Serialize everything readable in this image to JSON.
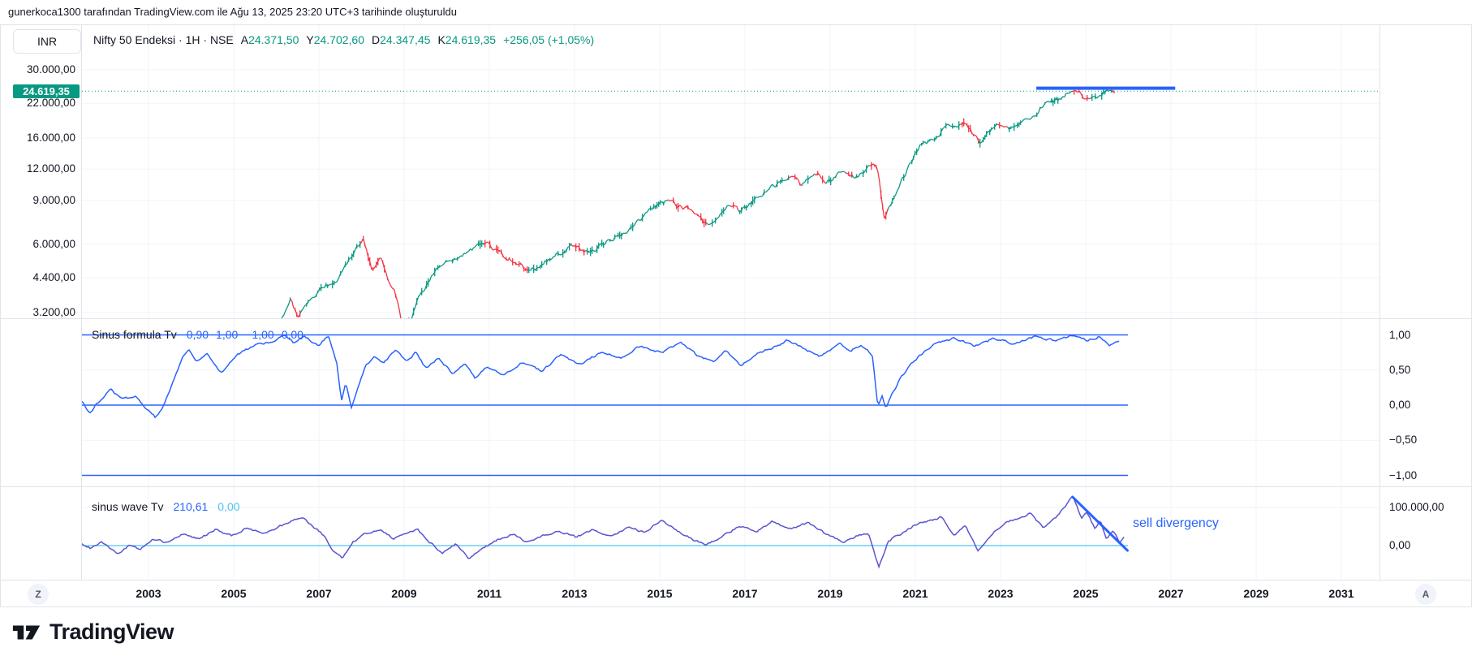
{
  "attribution": "gunerkoca1300 tarafından TradingView.com ile Ağu 13, 2025 23:20 UTC+3 tarihinde oluşturuldu",
  "header": {
    "currency_button": "INR",
    "symbol_title": "Nifty 50 Endeksi · 1H · NSE",
    "ohlc": [
      {
        "prefix": "A",
        "value": "24.371,50"
      },
      {
        "prefix": "Y",
        "value": "24.702,60"
      },
      {
        "prefix": "D",
        "value": "24.347,45"
      },
      {
        "prefix": "K",
        "value": "24.619,35"
      }
    ],
    "change": "+256,05 (+1,05%)"
  },
  "price_label": {
    "label": "24.619,35",
    "value": 24619.35
  },
  "price_scale": {
    "ticks": [
      {
        "label": "30.000,00",
        "value": 30000
      },
      {
        "label": "22.000,00",
        "value": 22000
      },
      {
        "label": "16.000,00",
        "value": 16000
      },
      {
        "label": "12.000,00",
        "value": 12000
      },
      {
        "label": "9.000,00",
        "value": 9000
      },
      {
        "label": "6.000,00",
        "value": 6000
      },
      {
        "label": "4.400,00",
        "value": 4400
      },
      {
        "label": "3.200,00",
        "value": 3200
      }
    ]
  },
  "indicator1": {
    "title": "Sinus formula Tv",
    "values": [
      "0,90",
      "1,00",
      "−1,00",
      "0,00"
    ],
    "axis_ticks": [
      {
        "label": "1,00",
        "value": 1
      },
      {
        "label": "0,50",
        "value": 0.5
      },
      {
        "label": "0,00",
        "value": 0
      },
      {
        "label": "−0,50",
        "value": -0.5
      },
      {
        "label": "−1,00",
        "value": -1
      }
    ]
  },
  "indicator2": {
    "title": "sinus wave Tv",
    "value1": "210,61",
    "value2": "0,00",
    "axis_ticks": [
      {
        "label": "100.000,00",
        "value": 100000
      },
      {
        "label": "0,00",
        "value": 0
      }
    ]
  },
  "annotations": {
    "sell_divergency": "sell divergency"
  },
  "time_axis": {
    "years": [
      "2003",
      "2005",
      "2007",
      "2009",
      "2011",
      "2013",
      "2015",
      "2017",
      "2019",
      "2021",
      "2023",
      "2025",
      "2027",
      "2029",
      "2031"
    ],
    "z_button": "Z",
    "a_button": "A"
  },
  "footer": {
    "logo_text": "TradingView"
  },
  "colors": {
    "up": "#089981",
    "down": "#f23645",
    "accent_blue": "#2962ff",
    "indicator2_line": "#5a54d1",
    "zero_line_cyan": "#4fc3f7",
    "badge_bg": "#089981",
    "grid": "#f0f3fa",
    "border": "#e0e3eb"
  },
  "chart_data": {
    "type": "candlestick",
    "title": "Nifty 50 Endeksi",
    "timeframe": "1H",
    "exchange": "NSE",
    "currency": "INR",
    "ohlc_values": {
      "open": 24371.5,
      "high": 24702.6,
      "low": 24347.45,
      "close": 24619.35,
      "change": 256.05,
      "change_pct": 1.05
    },
    "last_price": 24619.35,
    "price_axis": {
      "scale": "log",
      "side": "left",
      "ticks": [
        30000,
        22000,
        16000,
        12000,
        9000,
        6000,
        4400,
        3200
      ]
    },
    "x_axis": {
      "unit": "year",
      "ticks": [
        2003,
        2005,
        2007,
        2009,
        2011,
        2013,
        2015,
        2017,
        2019,
        2021,
        2023,
        2025,
        2027,
        2029,
        2031
      ]
    },
    "price_series": [
      [
        2006.1,
        2900
      ],
      [
        2006.35,
        3650
      ],
      [
        2006.5,
        3050
      ],
      [
        2007.0,
        3900
      ],
      [
        2007.4,
        4300
      ],
      [
        2007.75,
        5300
      ],
      [
        2008.05,
        6300
      ],
      [
        2008.25,
        4750
      ],
      [
        2008.45,
        5250
      ],
      [
        2008.6,
        4450
      ],
      [
        2008.8,
        3800
      ],
      [
        2008.95,
        2850
      ],
      [
        2009.15,
        2950
      ],
      [
        2009.35,
        3700
      ],
      [
        2009.6,
        4300
      ],
      [
        2009.85,
        5000
      ],
      [
        2010.3,
        5250
      ],
      [
        2010.85,
        6150
      ],
      [
        2011.3,
        5500
      ],
      [
        2011.6,
        5050
      ],
      [
        2011.95,
        4650
      ],
      [
        2012.4,
        5250
      ],
      [
        2012.95,
        5900
      ],
      [
        2013.35,
        5550
      ],
      [
        2013.8,
        6200
      ],
      [
        2014.3,
        6850
      ],
      [
        2014.85,
        8400
      ],
      [
        2015.2,
        8950
      ],
      [
        2015.7,
        8200
      ],
      [
        2016.15,
        7100
      ],
      [
        2016.6,
        8650
      ],
      [
        2016.9,
        8100
      ],
      [
        2017.5,
        9900
      ],
      [
        2018.05,
        11150
      ],
      [
        2018.35,
        10400
      ],
      [
        2018.7,
        11600
      ],
      [
        2018.9,
        10450
      ],
      [
        2019.3,
        11750
      ],
      [
        2019.6,
        11150
      ],
      [
        2019.95,
        12300
      ],
      [
        2020.1,
        12400
      ],
      [
        2020.28,
        7600
      ],
      [
        2020.5,
        9350
      ],
      [
        2020.75,
        11400
      ],
      [
        2021.1,
        14800
      ],
      [
        2021.45,
        15500
      ],
      [
        2021.75,
        17900
      ],
      [
        2022.0,
        17400
      ],
      [
        2022.15,
        18400
      ],
      [
        2022.5,
        15450
      ],
      [
        2022.8,
        17400
      ],
      [
        2022.95,
        18350
      ],
      [
        2023.2,
        17050
      ],
      [
        2023.5,
        18550
      ],
      [
        2023.8,
        19850
      ],
      [
        2024.05,
        21900
      ],
      [
        2024.25,
        22300
      ],
      [
        2024.45,
        23400
      ],
      [
        2024.7,
        25300
      ],
      [
        2024.95,
        23600
      ],
      [
        2025.1,
        22750
      ],
      [
        2025.3,
        23400
      ],
      [
        2025.5,
        25100
      ],
      [
        2025.6,
        24800
      ],
      [
        2025.7,
        24619
      ]
    ],
    "resistance_line": {
      "price": 25300,
      "from_year": 2023.84,
      "to_year": 2027.1
    },
    "indicators": [
      {
        "name": "Sinus formula Tv",
        "current": 0.9,
        "levels": [
          1,
          0,
          -1
        ],
        "range": [
          -1,
          1
        ],
        "series": [
          [
            2001.44,
            0.05
          ],
          [
            2001.61,
            -0.12
          ],
          [
            2001.76,
            0
          ],
          [
            2002.12,
            0.22
          ],
          [
            2002.37,
            0.08
          ],
          [
            2002.71,
            0.12
          ],
          [
            2002.94,
            -0.05
          ],
          [
            2003.17,
            -0.18
          ],
          [
            2003.36,
            0
          ],
          [
            2003.8,
            0.68
          ],
          [
            2003.95,
            0.8
          ],
          [
            2004.12,
            0.62
          ],
          [
            2004.37,
            0.72
          ],
          [
            2004.7,
            0.45
          ],
          [
            2005.04,
            0.7
          ],
          [
            2005.51,
            0.85
          ],
          [
            2005.99,
            0.92
          ],
          [
            2006.22,
            1.0
          ],
          [
            2006.41,
            0.88
          ],
          [
            2006.66,
            0.98
          ],
          [
            2006.98,
            0.85
          ],
          [
            2007.23,
            0.98
          ],
          [
            2007.42,
            0.6
          ],
          [
            2007.53,
            0.08
          ],
          [
            2007.63,
            0.32
          ],
          [
            2007.76,
            -0.03
          ],
          [
            2007.9,
            0.22
          ],
          [
            2008.09,
            0.55
          ],
          [
            2008.31,
            0.7
          ],
          [
            2008.5,
            0.6
          ],
          [
            2008.81,
            0.78
          ],
          [
            2009.08,
            0.62
          ],
          [
            2009.27,
            0.75
          ],
          [
            2009.51,
            0.52
          ],
          [
            2009.8,
            0.68
          ],
          [
            2010.14,
            0.45
          ],
          [
            2010.41,
            0.6
          ],
          [
            2010.66,
            0.38
          ],
          [
            2010.94,
            0.55
          ],
          [
            2011.32,
            0.42
          ],
          [
            2011.8,
            0.62
          ],
          [
            2012.24,
            0.48
          ],
          [
            2012.66,
            0.72
          ],
          [
            2013.13,
            0.58
          ],
          [
            2013.61,
            0.75
          ],
          [
            2014.09,
            0.68
          ],
          [
            2014.56,
            0.85
          ],
          [
            2015.04,
            0.75
          ],
          [
            2015.51,
            0.88
          ],
          [
            2015.86,
            0.72
          ],
          [
            2016.27,
            0.62
          ],
          [
            2016.56,
            0.78
          ],
          [
            2016.89,
            0.55
          ],
          [
            2017.32,
            0.75
          ],
          [
            2017.76,
            0.85
          ],
          [
            2017.99,
            0.92
          ],
          [
            2018.37,
            0.8
          ],
          [
            2018.75,
            0.7
          ],
          [
            2019.23,
            0.88
          ],
          [
            2019.48,
            0.78
          ],
          [
            2019.74,
            0.85
          ],
          [
            2019.99,
            0.72
          ],
          [
            2020.12,
            -0.02
          ],
          [
            2020.22,
            0.15
          ],
          [
            2020.31,
            -0.05
          ],
          [
            2020.43,
            0.12
          ],
          [
            2020.62,
            0.35
          ],
          [
            2020.85,
            0.55
          ],
          [
            2021.13,
            0.72
          ],
          [
            2021.51,
            0.88
          ],
          [
            2021.9,
            0.95
          ],
          [
            2022.37,
            0.85
          ],
          [
            2022.85,
            0.95
          ],
          [
            2023.32,
            0.88
          ],
          [
            2023.8,
            0.97
          ],
          [
            2024.28,
            0.92
          ],
          [
            2024.7,
            1.0
          ],
          [
            2025.04,
            0.92
          ],
          [
            2025.32,
            0.98
          ],
          [
            2025.57,
            0.85
          ],
          [
            2025.8,
            0.92
          ]
        ]
      },
      {
        "name": "sinus wave Tv",
        "current": 210.61,
        "zero_line": 0,
        "series": [
          [
            2001.44,
            4000
          ],
          [
            2001.65,
            -8500
          ],
          [
            2001.9,
            8500
          ],
          [
            2002.28,
            -21000
          ],
          [
            2002.56,
            2000
          ],
          [
            2002.79,
            -10500
          ],
          [
            2003.1,
            17000
          ],
          [
            2003.42,
            8500
          ],
          [
            2003.8,
            30000
          ],
          [
            2004.18,
            17000
          ],
          [
            2004.56,
            42500
          ],
          [
            2004.94,
            25500
          ],
          [
            2005.32,
            47000
          ],
          [
            2005.7,
            30000
          ],
          [
            2006.09,
            51000
          ],
          [
            2006.41,
            68000
          ],
          [
            2006.6,
            76500
          ],
          [
            2006.85,
            51000
          ],
          [
            2007.13,
            25500
          ],
          [
            2007.36,
            -17000
          ],
          [
            2007.55,
            -34000
          ],
          [
            2007.8,
            8500
          ],
          [
            2008.09,
            30000
          ],
          [
            2008.43,
            42500
          ],
          [
            2008.75,
            17000
          ],
          [
            2009.04,
            34000
          ],
          [
            2009.32,
            42500
          ],
          [
            2009.61,
            8500
          ],
          [
            2009.9,
            -21000
          ],
          [
            2010.22,
            4000
          ],
          [
            2010.52,
            -34000
          ],
          [
            2010.85,
            -8500
          ],
          [
            2011.23,
            17000
          ],
          [
            2011.55,
            30000
          ],
          [
            2011.9,
            8500
          ],
          [
            2012.24,
            25500
          ],
          [
            2012.62,
            38500
          ],
          [
            2013.04,
            21500
          ],
          [
            2013.42,
            42500
          ],
          [
            2013.84,
            25500
          ],
          [
            2014.28,
            47000
          ],
          [
            2014.66,
            34000
          ],
          [
            2015.04,
            68000
          ],
          [
            2015.36,
            42500
          ],
          [
            2015.7,
            21500
          ],
          [
            2016.08,
            0
          ],
          [
            2016.46,
            25500
          ],
          [
            2016.88,
            51000
          ],
          [
            2017.27,
            34000
          ],
          [
            2017.65,
            64000
          ],
          [
            2018.03,
            42500
          ],
          [
            2018.47,
            59500
          ],
          [
            2018.85,
            34000
          ],
          [
            2019.29,
            8500
          ],
          [
            2019.61,
            25500
          ],
          [
            2019.9,
            34000
          ],
          [
            2020.14,
            -55500
          ],
          [
            2020.37,
            13000
          ],
          [
            2020.66,
            30000
          ],
          [
            2021.0,
            55500
          ],
          [
            2021.32,
            64000
          ],
          [
            2021.61,
            74500
          ],
          [
            2021.9,
            25500
          ],
          [
            2022.18,
            51000
          ],
          [
            2022.47,
            -13000
          ],
          [
            2022.79,
            30000
          ],
          [
            2023.1,
            57500
          ],
          [
            2023.42,
            72500
          ],
          [
            2023.7,
            85000
          ],
          [
            2023.99,
            47000
          ],
          [
            2024.31,
            72500
          ],
          [
            2024.69,
            127500
          ],
          [
            2024.9,
            72500
          ],
          [
            2025.03,
            89500
          ],
          [
            2025.22,
            42500
          ],
          [
            2025.35,
            64000
          ],
          [
            2025.49,
            13000
          ],
          [
            2025.64,
            42500
          ],
          [
            2025.79,
            8500
          ],
          [
            2025.9,
            21500
          ]
        ],
        "divergence_line": {
          "from": [
            2024.69,
            127500
          ],
          "to": [
            2025.98,
            -13000
          ]
        },
        "annotation": "sell divergency"
      }
    ]
  }
}
